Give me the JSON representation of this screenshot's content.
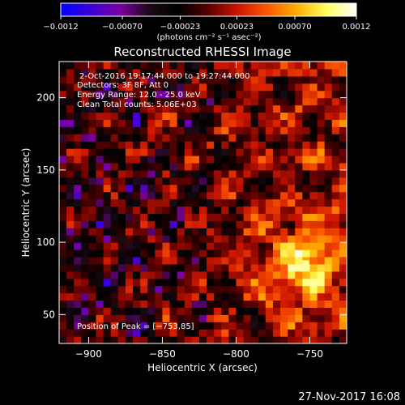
{
  "chart_data": {
    "type": "heatmap",
    "title": "Reconstructed RHESSI Image",
    "xlabel": "Heliocentric X (arcsec)",
    "ylabel": "Heliocentric Y (arcsec)",
    "xlim": [
      -920,
      -725
    ],
    "ylim": [
      30,
      225
    ],
    "x_ticks": [
      -900,
      -850,
      -800,
      -750
    ],
    "y_ticks": [
      50,
      100,
      150,
      200
    ],
    "colorbar": {
      "range": [
        -0.0012,
        0.0012
      ],
      "ticks": [
        -0.0012,
        -0.0007,
        -0.00023,
        0.00023,
        0.0007,
        0.0012
      ],
      "tick_labels": [
        "−0.0012",
        "−0.00070",
        "−0.00023",
        "0.00023",
        "0.00070",
        "0.0012"
      ],
      "unit_label": "(photons cm⁻² s⁻¹ asec⁻²)",
      "colormap": [
        "#0000ff",
        "#3b00d8",
        "#7a00a0",
        "#1a0a14",
        "#000000",
        "#5a0000",
        "#cc1500",
        "#ff5a00",
        "#ffb000",
        "#ffff60",
        "#ffffff"
      ]
    },
    "peak": {
      "x": -753,
      "y": 85
    },
    "grid": false
  },
  "annotations": {
    "time_range": "2-Oct-2016 19:17:44.000 to 19:27:44.000",
    "detectors": "Detectors: 3F 8F, Att 0",
    "energy": "Energy Range: 12.0 - 25.0 keV",
    "method": "Clean    Total counts: 5.06E+03",
    "peak_text": "Position of Peak = [−753,85]"
  },
  "footer": {
    "timestamp": "27-Nov-2017 16:08"
  }
}
